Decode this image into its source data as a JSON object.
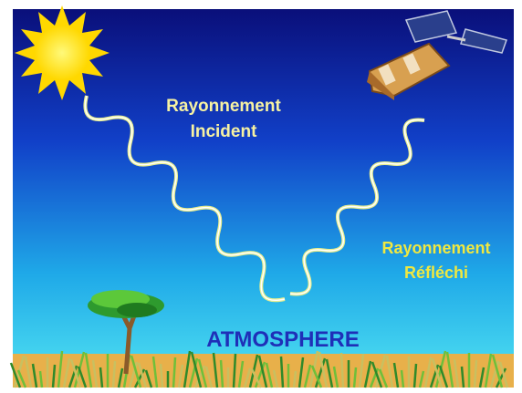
{
  "incident_label": {
    "line1": "Rayonnement",
    "line2": "Incident"
  },
  "reflected_label": {
    "line1": "Rayonnement",
    "line2": "Réfléchi"
  },
  "atmosphere_label": "ATMOSPHERE"
}
